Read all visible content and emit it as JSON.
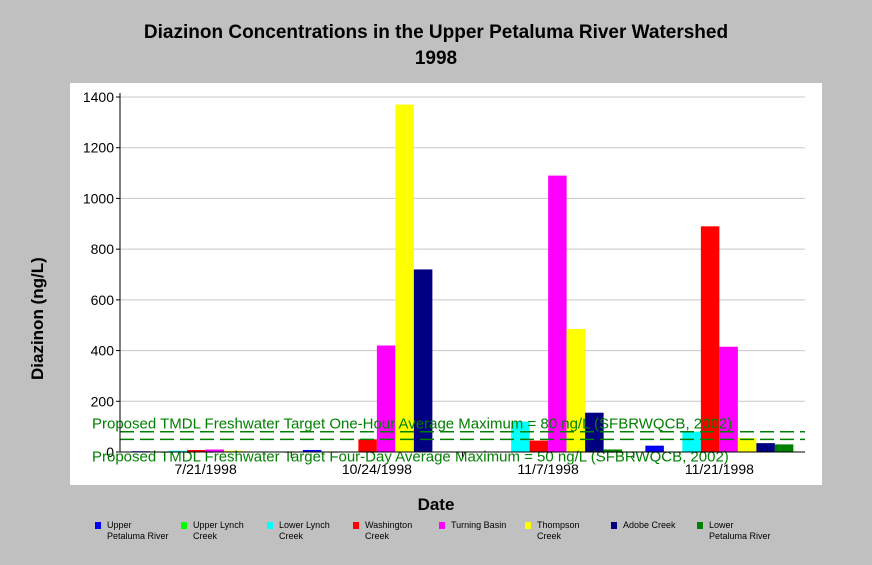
{
  "title_line1": "Diazinon Concentrations in the Upper Petaluma River Watershed",
  "title_line2": "1998",
  "chart_data": {
    "type": "bar",
    "xlabel": "Date",
    "ylabel": "Diazinon (ng/L)",
    "ylim": [
      0,
      1400
    ],
    "yticks": [
      0,
      200,
      400,
      600,
      800,
      1000,
      1200,
      1400
    ],
    "grid": true,
    "legend_position": "bottom",
    "categories": [
      "7/21/1998",
      "10/24/1998",
      "11/7/1998",
      "11/21/1998"
    ],
    "series": [
      {
        "name": "Upper Petaluma River",
        "color": "#0000ff",
        "values": [
          3,
          8,
          0,
          25
        ]
      },
      {
        "name": "Upper Lynch Creek",
        "color": "#00ff00",
        "values": [
          2,
          0,
          0,
          0
        ]
      },
      {
        "name": "Lower Lynch Creek",
        "color": "#00ffff",
        "values": [
          5,
          0,
          120,
          80
        ]
      },
      {
        "name": "Washington Creek",
        "color": "#ff0000",
        "values": [
          8,
          50,
          45,
          890
        ]
      },
      {
        "name": "Turning Basin",
        "color": "#ff00ff",
        "values": [
          10,
          420,
          1090,
          415
        ]
      },
      {
        "name": "Thompson Creek",
        "color": "#ffff00",
        "values": [
          5,
          1370,
          485,
          55
        ]
      },
      {
        "name": "Adobe Creek",
        "color": "#000080",
        "values": [
          0,
          720,
          155,
          35
        ]
      },
      {
        "name": "Lower Petaluma River",
        "color": "#008000",
        "values": [
          0,
          0,
          10,
          30
        ]
      }
    ],
    "reference_lines": [
      {
        "label": "Proposed TMDL Freshwater Target One-Hour Average Maximum = 80 ng/L (SFBRWQCB, 2002)",
        "value": 80,
        "color": "#008000"
      },
      {
        "label": "Proposed TMDL Freshwater Target Four-Day Average Maximum = 50 ng/L (SFBRWQCB, 2002)",
        "value": 50,
        "color": "#008000"
      }
    ]
  },
  "legend": [
    {
      "line1": "Upper",
      "line2": "Petaluma River",
      "color": "#0000ff"
    },
    {
      "line1": "Upper Lynch",
      "line2": "Creek",
      "color": "#00ff00"
    },
    {
      "line1": "Lower Lynch",
      "line2": "Creek",
      "color": "#00ffff"
    },
    {
      "line1": "Washington",
      "line2": "Creek",
      "color": "#ff0000"
    },
    {
      "line1": "Turning Basin",
      "line2": "",
      "color": "#ff00ff"
    },
    {
      "line1": "Thompson",
      "line2": "Creek",
      "color": "#ffff00"
    },
    {
      "line1": "Adobe Creek",
      "line2": "",
      "color": "#000080"
    },
    {
      "line1": "Lower",
      "line2": "Petaluma River",
      "color": "#008000"
    }
  ]
}
